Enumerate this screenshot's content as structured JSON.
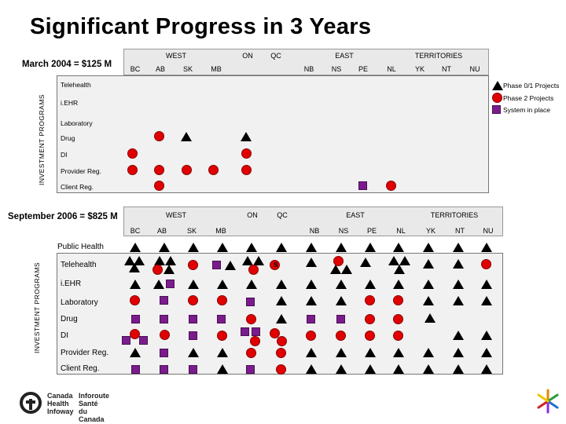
{
  "title": "Significant Progress in 3 Years",
  "top_panel": {
    "period_label": "March 2004 = $125 M",
    "axis_label": "INVESTMENT PROGRAMS",
    "groups": [
      "WEST",
      "ON",
      "QC",
      "EAST",
      "TERRITORIES"
    ],
    "columns": [
      "BC",
      "AB",
      "SK",
      "MB",
      "NB",
      "NS",
      "PE",
      "NL",
      "YK",
      "NT",
      "NU"
    ],
    "rows": [
      "Telehealth",
      "i.EHR",
      "Laboratory",
      "Drug",
      "DI",
      "Provider Reg.",
      "Client Reg."
    ]
  },
  "bottom_panel": {
    "period_label": "September 2006 = $825 M",
    "axis_label": "INVESTMENT PROGRAMS",
    "groups": [
      "WEST",
      "ON",
      "QC",
      "EAST",
      "TERRITORIES"
    ],
    "columns": [
      "BC",
      "AB",
      "SK",
      "MB",
      "NB",
      "NS",
      "PE",
      "NL",
      "YK",
      "NT",
      "NU"
    ],
    "rows": [
      "Public Health",
      "Telehealth",
      "i.EHR",
      "Laboratory",
      "Drug",
      "DI",
      "Provider Reg.",
      "Client Reg."
    ],
    "annotation": "S"
  },
  "legend": [
    {
      "label": "Phase 0/1 Projects",
      "shape": "triangle"
    },
    {
      "label": "Phase 2 Projects",
      "shape": "circle"
    },
    {
      "label": "System in place",
      "shape": "square"
    }
  ],
  "colors": {
    "circle": "#e00000",
    "square": "#7b1c8c",
    "triangle": "#000000",
    "header_bg": "#e9e9e9",
    "grid_bg": "#f1f1f1"
  },
  "footer": {
    "org_en_line1": "Canada",
    "org_en_line2": "Health",
    "org_en_line3": "Infoway",
    "org_fr_line1": "Inforoute",
    "org_fr_line2": "Santé",
    "org_fr_line3": "du Canada"
  }
}
